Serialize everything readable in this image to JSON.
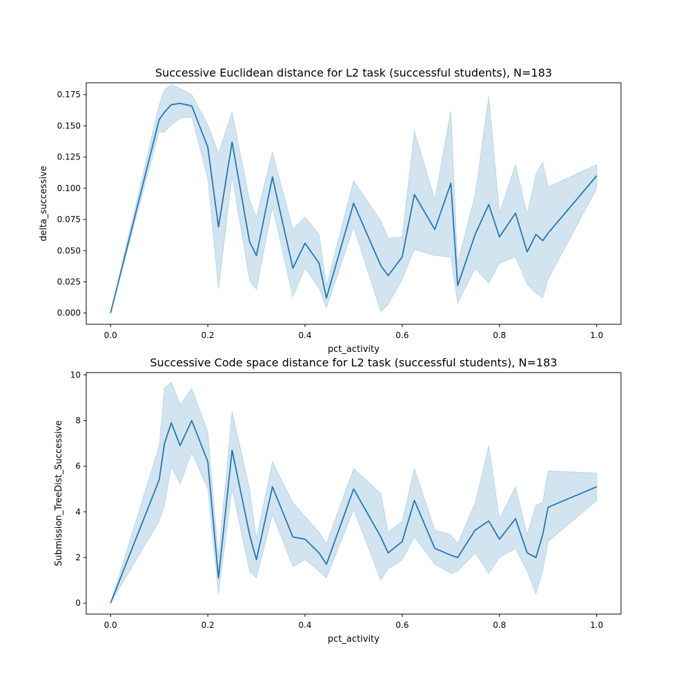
{
  "chart_data": [
    {
      "type": "line",
      "title": "Successive Euclidean distance for L2 task (successful students), N=183",
      "xlabel": "pct_activity",
      "ylabel": "delta_successive",
      "xlim": [
        -0.05,
        1.05
      ],
      "ylim": [
        -0.009,
        0.1845
      ],
      "xticks": [
        0.0,
        0.2,
        0.4,
        0.6,
        0.8,
        1.0
      ],
      "xtick_labels": [
        "0.0",
        "0.2",
        "0.4",
        "0.6",
        "0.8",
        "1.0"
      ],
      "yticks": [
        0.0,
        0.025,
        0.05,
        0.075,
        0.1,
        0.125,
        0.15,
        0.175
      ],
      "ytick_labels": [
        "0.000",
        "0.025",
        "0.050",
        "0.075",
        "0.100",
        "0.125",
        "0.150",
        "0.175"
      ],
      "grid": false,
      "line_color": "#1f77b4",
      "band_color": "#1f77b4",
      "x": [
        0.0,
        0.1,
        0.111,
        0.125,
        0.143,
        0.167,
        0.2,
        0.222,
        0.25,
        0.286,
        0.3,
        0.333,
        0.375,
        0.4,
        0.429,
        0.444,
        0.5,
        0.556,
        0.571,
        0.6,
        0.625,
        0.667,
        0.7,
        0.714,
        0.75,
        0.778,
        0.8,
        0.833,
        0.857,
        0.875,
        0.889,
        0.9,
        1.0
      ],
      "y": [
        0.0,
        0.155,
        0.161,
        0.167,
        0.168,
        0.166,
        0.133,
        0.069,
        0.137,
        0.057,
        0.046,
        0.109,
        0.036,
        0.056,
        0.04,
        0.012,
        0.088,
        0.038,
        0.03,
        0.045,
        0.095,
        0.067,
        0.104,
        0.022,
        0.063,
        0.087,
        0.061,
        0.08,
        0.049,
        0.063,
        0.058,
        0.064,
        0.11
      ],
      "y_low": [
        0.0,
        0.145,
        0.145,
        0.151,
        0.156,
        0.157,
        0.108,
        0.019,
        0.11,
        0.026,
        0.019,
        0.085,
        0.013,
        0.036,
        0.02,
        0.004,
        0.069,
        0.001,
        0.007,
        0.027,
        0.051,
        0.046,
        0.045,
        0.008,
        0.036,
        0.024,
        0.04,
        0.045,
        0.023,
        0.016,
        0.012,
        0.027,
        0.1
      ],
      "y_high": [
        0.0,
        0.167,
        0.179,
        0.183,
        0.18,
        0.175,
        0.151,
        0.128,
        0.161,
        0.09,
        0.077,
        0.129,
        0.067,
        0.077,
        0.063,
        0.022,
        0.106,
        0.074,
        0.06,
        0.061,
        0.146,
        0.091,
        0.162,
        0.04,
        0.095,
        0.174,
        0.08,
        0.119,
        0.079,
        0.111,
        0.121,
        0.101,
        0.119
      ]
    },
    {
      "type": "line",
      "title": "Successive Code space distance for L2 task (successful students), N=183",
      "xlabel": "pct_activity",
      "ylabel": "Submission_TreeDist_Successive",
      "xlim": [
        -0.05,
        1.05
      ],
      "ylim": [
        -0.48,
        10.1
      ],
      "xticks": [
        0.0,
        0.2,
        0.4,
        0.6,
        0.8,
        1.0
      ],
      "xtick_labels": [
        "0.0",
        "0.2",
        "0.4",
        "0.6",
        "0.8",
        "1.0"
      ],
      "yticks": [
        0,
        2,
        4,
        6,
        8,
        10
      ],
      "ytick_labels": [
        "0",
        "2",
        "4",
        "6",
        "8",
        "10"
      ],
      "grid": false,
      "line_color": "#1f77b4",
      "band_color": "#1f77b4",
      "x": [
        0.0,
        0.1,
        0.111,
        0.125,
        0.143,
        0.167,
        0.2,
        0.222,
        0.25,
        0.286,
        0.3,
        0.333,
        0.375,
        0.4,
        0.429,
        0.444,
        0.5,
        0.556,
        0.571,
        0.6,
        0.625,
        0.667,
        0.7,
        0.714,
        0.75,
        0.778,
        0.8,
        0.833,
        0.857,
        0.875,
        0.889,
        0.9,
        1.0
      ],
      "y": [
        0.0,
        5.4,
        7.0,
        7.9,
        6.9,
        8.0,
        6.2,
        1.1,
        6.7,
        3.0,
        1.9,
        5.1,
        2.9,
        2.8,
        2.2,
        1.7,
        5.0,
        2.9,
        2.2,
        2.7,
        4.5,
        2.4,
        2.1,
        2.0,
        3.2,
        3.6,
        2.8,
        3.7,
        2.2,
        2.0,
        3.0,
        4.2,
        5.1
      ],
      "y_low": [
        0.0,
        3.6,
        4.3,
        6.0,
        5.2,
        6.6,
        5.0,
        0.4,
        5.0,
        1.4,
        1.1,
        3.9,
        1.6,
        1.9,
        1.4,
        1.1,
        4.1,
        1.0,
        1.5,
        1.9,
        2.9,
        1.7,
        1.3,
        1.4,
        2.2,
        1.3,
        2.0,
        2.4,
        1.4,
        0.4,
        1.4,
        2.7,
        4.5
      ],
      "y_high": [
        0.0,
        6.9,
        9.4,
        9.7,
        8.7,
        9.4,
        7.5,
        2.0,
        8.4,
        5.0,
        2.8,
        6.2,
        4.4,
        3.8,
        3.1,
        2.6,
        5.9,
        4.8,
        3.1,
        3.6,
        5.9,
        3.2,
        3.0,
        2.6,
        4.4,
        6.9,
        3.7,
        5.1,
        3.0,
        4.3,
        4.4,
        5.8,
        5.7
      ]
    }
  ]
}
